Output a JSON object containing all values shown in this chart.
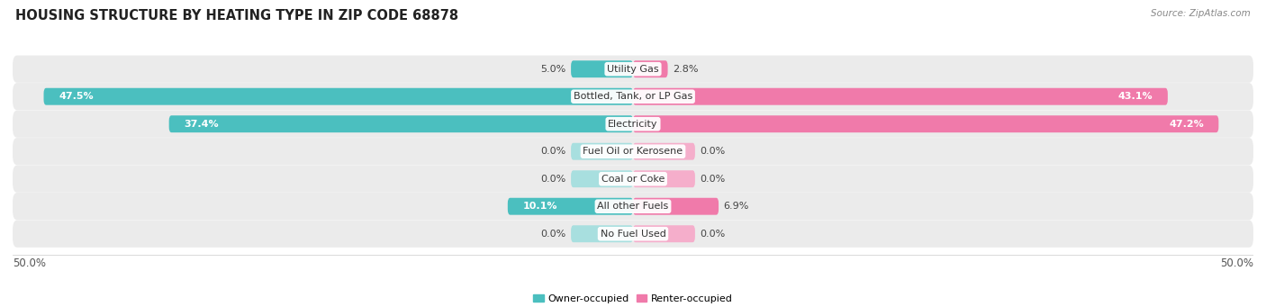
{
  "title": "HOUSING STRUCTURE BY HEATING TYPE IN ZIP CODE 68878",
  "source": "Source: ZipAtlas.com",
  "categories": [
    "Utility Gas",
    "Bottled, Tank, or LP Gas",
    "Electricity",
    "Fuel Oil or Kerosene",
    "Coal or Coke",
    "All other Fuels",
    "No Fuel Used"
  ],
  "owner_values": [
    5.0,
    47.5,
    37.4,
    0.0,
    0.0,
    10.1,
    0.0
  ],
  "renter_values": [
    2.8,
    43.1,
    47.2,
    0.0,
    0.0,
    6.9,
    0.0
  ],
  "owner_color": "#4BBFBF",
  "renter_color": "#F07AAA",
  "owner_color_light": "#A8DFDF",
  "renter_color_light": "#F5AECB",
  "owner_label": "Owner-occupied",
  "renter_label": "Renter-occupied",
  "max_value": 50.0,
  "stub_value": 5.0,
  "bar_height": 0.62,
  "row_bg_color": "#EBEBEB",
  "title_fontsize": 10.5,
  "label_fontsize": 8.0,
  "value_fontsize": 8.0,
  "axis_fontsize": 8.5,
  "source_fontsize": 7.5
}
